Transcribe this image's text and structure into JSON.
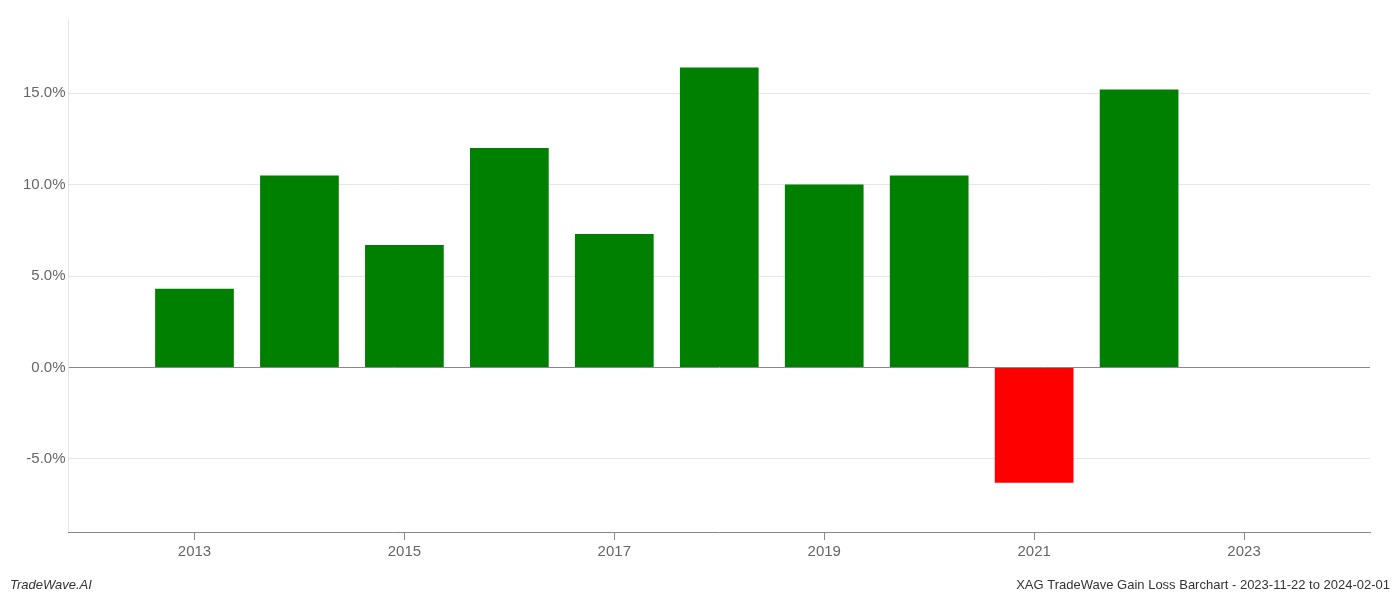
{
  "chart_data": {
    "type": "bar",
    "x": [
      2013,
      2014,
      2015,
      2016,
      2017,
      2018,
      2019,
      2020,
      2021,
      2022
    ],
    "values": [
      0.043,
      0.105,
      0.067,
      0.12,
      0.073,
      0.164,
      0.1,
      0.105,
      -0.063,
      0.152
    ],
    "colors": [
      "#008000",
      "#008000",
      "#008000",
      "#008000",
      "#008000",
      "#008000",
      "#008000",
      "#008000",
      "#ff0000",
      "#008000"
    ],
    "xlim": [
      2011.8,
      2024.2
    ],
    "xticks": [
      2013,
      2015,
      2017,
      2019,
      2021,
      2023
    ],
    "ylim": [
      -0.09,
      0.19
    ],
    "yticks": [
      {
        "value": -0.05,
        "label": "-5.0%"
      },
      {
        "value": 0.0,
        "label": "0.0%"
      },
      {
        "value": 0.05,
        "label": "5.0%"
      },
      {
        "value": 0.1,
        "label": "10.0%"
      },
      {
        "value": 0.15,
        "label": "15.0%"
      }
    ],
    "grid": true,
    "annotations": [
      "TradeWave.AI",
      "XAG TradeWave Gain Loss Barchart - 2023-11-22 to 2024-02-01"
    ]
  }
}
